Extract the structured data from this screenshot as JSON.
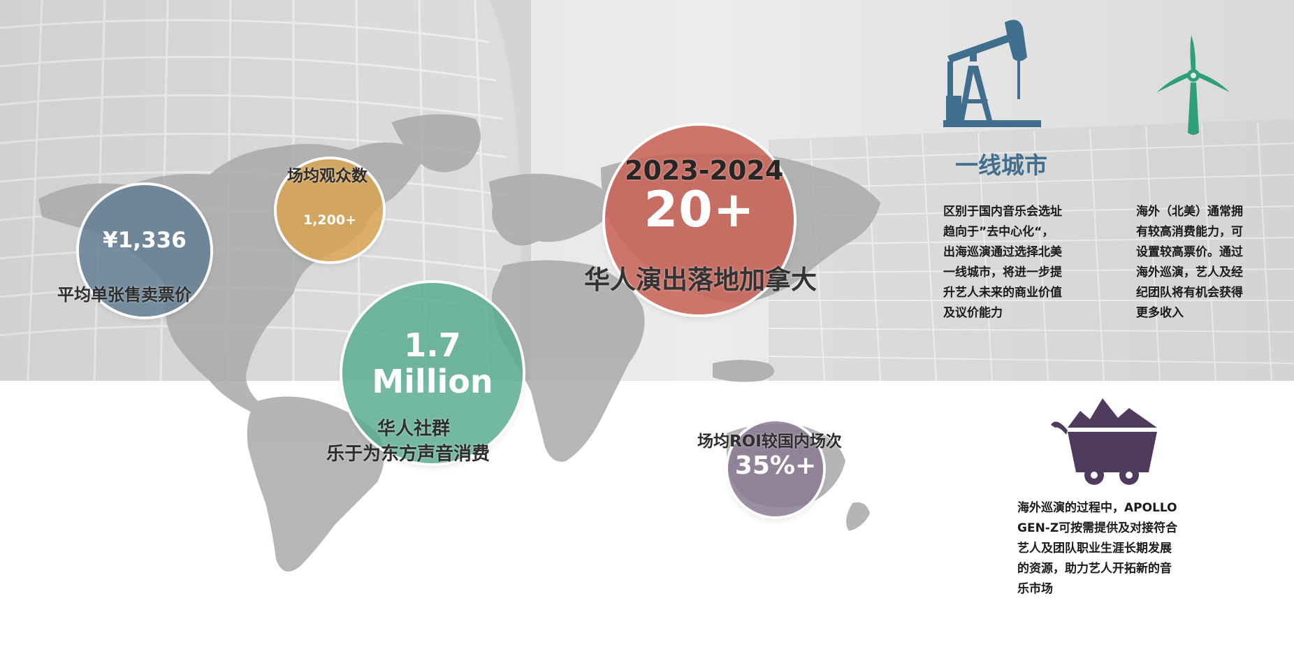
{
  "colors": {
    "blue_gray": "#5f7d92",
    "gold": "#d9a24f",
    "coral": "#c86458",
    "teal": "#5aab91",
    "plum": "#8a7a93",
    "steel_blue": "#3f6f8c",
    "green": "#2f9e7c",
    "purple": "#4f3b5e"
  },
  "stats": {
    "ticket_price": {
      "value": "¥1,336",
      "caption": "平均单张售卖票价"
    },
    "audience": {
      "title": "场均观众数",
      "value": "1,200+"
    },
    "shows": {
      "year": "2023-2024",
      "value": "20+",
      "caption": "华人演出落地加拿大"
    },
    "community": {
      "value_line1": "1.7",
      "value_line2": "Million",
      "caption_line1": "华人社群",
      "caption_line2": "乐于为东方声音消费"
    },
    "roi": {
      "title": "场均ROI较国内场次",
      "value": "35%+"
    }
  },
  "right_panel": {
    "heading": "一线城市",
    "para1": [
      "区别于国内音乐会选址",
      "趋向于”去中心化“，",
      "出海巡演通过选择北美",
      "一线城市，将进一步提",
      "升艺人未来的商业价值",
      "及议价能力"
    ],
    "para2": [
      "海外（北美）通常拥",
      "有较高消费能力，可",
      "设置较高票价。通过",
      "海外巡演，艺人及经",
      "纪团队将有机会获得",
      "更多收入"
    ],
    "para3": [
      "海外巡演的过程中，APOLLO",
      "GEN-Z可按需提供及对接符合",
      "艺人及团队职业生涯长期发展",
      "的资源，助力艺人开拓新的音",
      "乐市场"
    ]
  },
  "icons": {
    "pumpjack": "oil-pumpjack-icon",
    "turbine": "wind-turbine-icon",
    "cart": "mine-cart-icon"
  }
}
